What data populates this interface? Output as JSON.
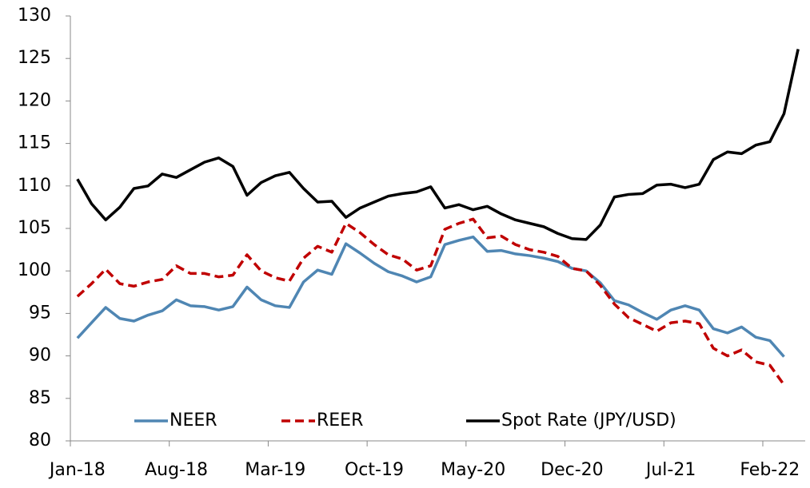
{
  "chart_data": {
    "type": "line",
    "categories": [
      "Jan-18",
      null,
      null,
      null,
      null,
      null,
      null,
      "Aug-18",
      null,
      null,
      null,
      null,
      null,
      null,
      "Mar-19",
      null,
      null,
      null,
      null,
      null,
      null,
      "Oct-19",
      null,
      null,
      null,
      null,
      null,
      null,
      "May-20",
      null,
      null,
      null,
      null,
      null,
      null,
      "Dec-20",
      null,
      null,
      null,
      null,
      null,
      null,
      "Jul-21",
      null,
      null,
      null,
      null,
      null,
      null,
      "Feb-22",
      null,
      null
    ],
    "series": [
      {
        "name": "NEER",
        "color": "#4f86b3",
        "dash": false,
        "values": [
          92.1,
          93.9,
          95.7,
          94.4,
          94.1,
          94.8,
          95.3,
          96.6,
          95.9,
          95.8,
          95.4,
          95.8,
          98.1,
          96.6,
          95.9,
          95.7,
          98.7,
          100.1,
          99.6,
          103.2,
          102.1,
          100.9,
          99.9,
          99.4,
          98.7,
          99.3,
          103.1,
          103.6,
          104.0,
          102.3,
          102.4,
          102.0,
          101.8,
          101.5,
          101.1,
          100.3,
          100.0,
          98.6,
          96.5,
          96.0,
          95.1,
          94.3,
          95.4,
          95.9,
          95.4,
          93.2,
          92.7,
          93.4,
          92.2,
          91.8,
          89.9,
          null
        ]
      },
      {
        "name": "REER",
        "color": "#c00000",
        "dash": true,
        "values": [
          97.0,
          98.5,
          100.2,
          98.5,
          98.2,
          98.7,
          99.0,
          100.6,
          99.7,
          99.7,
          99.3,
          99.5,
          101.9,
          100.0,
          99.2,
          98.8,
          101.5,
          102.9,
          102.2,
          105.6,
          104.5,
          103.1,
          101.9,
          101.4,
          100.1,
          100.6,
          104.9,
          105.6,
          106.1,
          103.9,
          104.1,
          103.1,
          102.5,
          102.2,
          101.7,
          100.3,
          100.0,
          98.3,
          96.1,
          94.5,
          93.7,
          92.9,
          93.9,
          94.1,
          93.8,
          90.9,
          90.0,
          90.7,
          89.3,
          88.9,
          86.6,
          null
        ]
      },
      {
        "name": "Spot Rate (JPY/USD)",
        "color": "#000000",
        "dash": false,
        "values": [
          110.8,
          107.9,
          106.0,
          107.5,
          109.7,
          110.0,
          111.4,
          111.0,
          111.9,
          112.8,
          113.3,
          112.3,
          108.9,
          110.4,
          111.2,
          111.6,
          109.7,
          108.1,
          108.2,
          106.3,
          107.4,
          108.1,
          108.8,
          109.1,
          109.3,
          109.9,
          107.4,
          107.8,
          107.2,
          107.6,
          106.7,
          106.0,
          105.6,
          105.2,
          104.4,
          103.8,
          103.7,
          105.4,
          108.7,
          109.0,
          109.1,
          110.1,
          110.2,
          109.8,
          110.2,
          113.1,
          114.0,
          113.8,
          114.8,
          115.2,
          118.5,
          126.1
        ]
      }
    ],
    "ylim": [
      80,
      130
    ],
    "yticks": [
      80,
      85,
      90,
      95,
      100,
      105,
      110,
      115,
      120,
      125,
      130
    ],
    "grid": false,
    "legend": "bottom"
  }
}
